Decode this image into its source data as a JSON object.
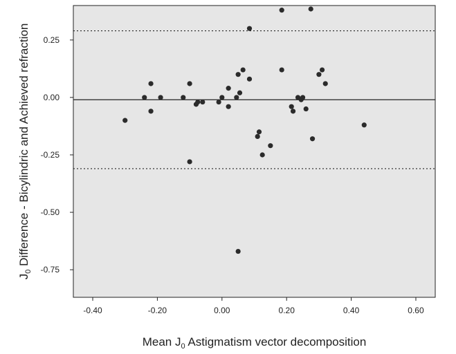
{
  "chart_data": {
    "type": "scatter",
    "xlabel": {
      "prefix": "Mean J",
      "sub": "0",
      "suffix": " Astigmatism vector decomposition"
    },
    "ylabel": {
      "prefix": "J",
      "sub": "0",
      "suffix": " Difference - Bicylindric and Achieved  refraction"
    },
    "x_ticks": [
      "-0.40",
      "-0.20",
      "0.00",
      "0.20",
      "0.40",
      "0.60"
    ],
    "y_ticks": [
      "-0.75",
      "-0.50",
      "-0.25",
      "0.00",
      "0.25"
    ],
    "xlim": [
      -0.46,
      0.66
    ],
    "ylim": [
      -0.87,
      0.4
    ],
    "grid": false,
    "reference_lines": [
      {
        "name": "mean",
        "y": -0.01,
        "style": "solid"
      },
      {
        "name": "upper-limit",
        "y": 0.29,
        "style": "dotted"
      },
      {
        "name": "lower-limit",
        "y": -0.31,
        "style": "dotted"
      }
    ],
    "colors": {
      "plot_background": "#e6e6e6",
      "point": "#2b2b2b",
      "line": "#222222"
    },
    "points": [
      {
        "x": -0.3,
        "y": -0.1
      },
      {
        "x": -0.24,
        "y": 0.0
      },
      {
        "x": -0.22,
        "y": 0.06
      },
      {
        "x": -0.22,
        "y": -0.06
      },
      {
        "x": -0.19,
        "y": 0.0
      },
      {
        "x": -0.12,
        "y": 0.0
      },
      {
        "x": -0.1,
        "y": 0.06
      },
      {
        "x": -0.1,
        "y": -0.28
      },
      {
        "x": -0.08,
        "y": -0.03
      },
      {
        "x": -0.075,
        "y": -0.02
      },
      {
        "x": -0.06,
        "y": -0.02
      },
      {
        "x": -0.01,
        "y": -0.02
      },
      {
        "x": 0.0,
        "y": 0.0
      },
      {
        "x": 0.02,
        "y": 0.04
      },
      {
        "x": 0.02,
        "y": -0.04
      },
      {
        "x": 0.045,
        "y": 0.0
      },
      {
        "x": 0.05,
        "y": 0.1
      },
      {
        "x": 0.055,
        "y": 0.02
      },
      {
        "x": 0.065,
        "y": 0.12
      },
      {
        "x": 0.05,
        "y": -0.67
      },
      {
        "x": 0.085,
        "y": 0.3
      },
      {
        "x": 0.085,
        "y": 0.08
      },
      {
        "x": 0.11,
        "y": -0.17
      },
      {
        "x": 0.115,
        "y": -0.15
      },
      {
        "x": 0.125,
        "y": -0.25
      },
      {
        "x": 0.15,
        "y": -0.21
      },
      {
        "x": 0.185,
        "y": 0.12
      },
      {
        "x": 0.185,
        "y": 0.38
      },
      {
        "x": 0.215,
        "y": -0.04
      },
      {
        "x": 0.22,
        "y": -0.06
      },
      {
        "x": 0.235,
        "y": 0.0
      },
      {
        "x": 0.245,
        "y": -0.01
      },
      {
        "x": 0.25,
        "y": 0.0
      },
      {
        "x": 0.26,
        "y": -0.05
      },
      {
        "x": 0.275,
        "y": 0.385
      },
      {
        "x": 0.28,
        "y": -0.18
      },
      {
        "x": 0.3,
        "y": 0.1
      },
      {
        "x": 0.31,
        "y": 0.12
      },
      {
        "x": 0.32,
        "y": 0.06
      },
      {
        "x": 0.44,
        "y": -0.12
      }
    ]
  }
}
